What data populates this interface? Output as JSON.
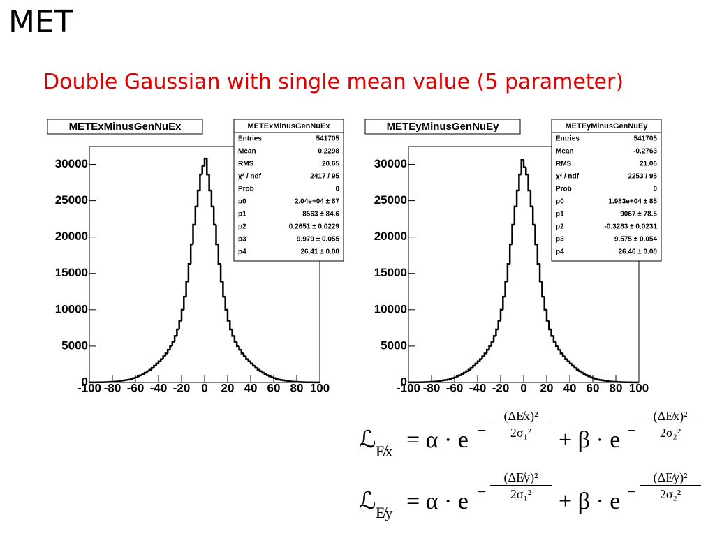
{
  "title": "MET",
  "subtitle": "Double Gaussian with single mean value (5 parameter)",
  "chart_data": [
    {
      "type": "histogram",
      "title": "METExMinusGenNuEx",
      "color": "#000000",
      "bins": [
        -100,
        -98,
        -96,
        -94,
        -92,
        -90,
        -88,
        -86,
        -84,
        -82,
        -80,
        -78,
        -76,
        -74,
        -72,
        -70,
        -68,
        -66,
        -64,
        -62,
        -60,
        -58,
        -56,
        -54,
        -52,
        -50,
        -48,
        -46,
        -44,
        -42,
        -40,
        -38,
        -36,
        -34,
        -32,
        -30,
        -28,
        -26,
        -24,
        -22,
        -20,
        -18,
        -16,
        -14,
        -12,
        -10,
        -8,
        -6,
        -4,
        -2,
        0,
        2,
        4,
        6,
        8,
        10,
        12,
        14,
        16,
        18,
        20,
        22,
        24,
        26,
        28,
        30,
        32,
        34,
        36,
        38,
        40,
        42,
        44,
        46,
        48,
        50,
        52,
        54,
        56,
        58,
        60,
        62,
        64,
        66,
        68,
        70,
        72,
        74,
        76,
        78,
        80,
        82,
        84,
        86,
        88,
        90,
        92,
        94,
        96,
        98,
        100
      ],
      "values": [
        8,
        10,
        15,
        20,
        25,
        30,
        40,
        50,
        60,
        80,
        100,
        120,
        150,
        200,
        250,
        300,
        350,
        400,
        500,
        600,
        700,
        850,
        1000,
        1150,
        1350,
        1550,
        1750,
        2000,
        2300,
        2600,
        2900,
        3200,
        3600,
        4000,
        4500,
        5000,
        5600,
        6400,
        7300,
        8500,
        10000,
        11800,
        13900,
        16300,
        19000,
        21700,
        24200,
        26400,
        28600,
        29800,
        30800,
        28600,
        26400,
        24200,
        21700,
        19000,
        16300,
        13900,
        11800,
        10000,
        8500,
        7300,
        6400,
        5600,
        5000,
        4500,
        4000,
        3600,
        3200,
        2900,
        2600,
        2300,
        2000,
        1750,
        1550,
        1350,
        1150,
        1000,
        850,
        700,
        600,
        500,
        400,
        350,
        300,
        250,
        200,
        150,
        120,
        100,
        80,
        60,
        50,
        40,
        30,
        25,
        20,
        15,
        10,
        8
      ],
      "xlim": [
        -100,
        100
      ],
      "xticks": [
        -100,
        -80,
        -60,
        -40,
        -20,
        0,
        20,
        40,
        60,
        80,
        100
      ],
      "ylim": [
        0,
        32450
      ],
      "yticks": [
        0,
        5000,
        10000,
        15000,
        20000,
        25000,
        30000
      ],
      "stats": {
        "name": "METExMinusGenNuEx",
        "rows": [
          [
            "Entries",
            "541705"
          ],
          [
            "Mean",
            "0.2298"
          ],
          [
            "RMS",
            "20.65"
          ],
          [
            "χ² / ndf",
            "2417 / 95"
          ],
          [
            "Prob",
            "0"
          ],
          [
            "p0",
            "2.04e+04 ± 87"
          ],
          [
            "p1",
            "8563 ± 84.6"
          ],
          [
            "p2",
            "0.2651 ± 0.0229"
          ],
          [
            "p3",
            "9.979 ± 0.055"
          ],
          [
            "p4",
            "26.41 ± 0.08"
          ]
        ]
      }
    },
    {
      "type": "histogram",
      "title": "METEyMinusGenNuEy",
      "color": "#000000",
      "bins": [
        -100,
        -98,
        -96,
        -94,
        -92,
        -90,
        -88,
        -86,
        -84,
        -82,
        -80,
        -78,
        -76,
        -74,
        -72,
        -70,
        -68,
        -66,
        -64,
        -62,
        -60,
        -58,
        -56,
        -54,
        -52,
        -50,
        -48,
        -46,
        -44,
        -42,
        -40,
        -38,
        -36,
        -34,
        -32,
        -30,
        -28,
        -26,
        -24,
        -22,
        -20,
        -18,
        -16,
        -14,
        -12,
        -10,
        -8,
        -6,
        -4,
        -2,
        0,
        2,
        4,
        6,
        8,
        10,
        12,
        14,
        16,
        18,
        20,
        22,
        24,
        26,
        28,
        30,
        32,
        34,
        36,
        38,
        40,
        42,
        44,
        46,
        48,
        50,
        52,
        54,
        56,
        58,
        60,
        62,
        64,
        66,
        68,
        70,
        72,
        74,
        76,
        78,
        80,
        82,
        84,
        86,
        88,
        90,
        92,
        94,
        96,
        98,
        100
      ],
      "values": [
        8,
        10,
        15,
        20,
        25,
        30,
        40,
        50,
        60,
        80,
        100,
        120,
        150,
        200,
        250,
        300,
        350,
        400,
        500,
        600,
        700,
        850,
        1000,
        1150,
        1350,
        1550,
        1750,
        2000,
        2300,
        2600,
        2900,
        3200,
        3600,
        4000,
        4500,
        5000,
        5600,
        6400,
        7300,
        8500,
        10000,
        11800,
        13900,
        16300,
        19000,
        21700,
        24200,
        26400,
        28600,
        30600,
        29600,
        28600,
        26400,
        24200,
        21700,
        19000,
        16300,
        13900,
        11800,
        10000,
        8500,
        7300,
        6400,
        5600,
        5000,
        4500,
        4000,
        3600,
        3200,
        2900,
        2600,
        2300,
        2000,
        1750,
        1550,
        1350,
        1150,
        1000,
        850,
        700,
        600,
        500,
        400,
        350,
        300,
        250,
        200,
        150,
        120,
        100,
        80,
        60,
        50,
        40,
        30,
        25,
        20,
        15,
        10,
        8
      ],
      "xlim": [
        -100,
        100
      ],
      "xticks": [
        -100,
        -80,
        -60,
        -40,
        -20,
        0,
        20,
        40,
        60,
        80,
        100
      ],
      "ylim": [
        0,
        32450
      ],
      "yticks": [
        0,
        5000,
        10000,
        15000,
        20000,
        25000,
        30000
      ],
      "stats": {
        "name": "METEyMinusGenNuEy",
        "rows": [
          [
            "Entries",
            "541705"
          ],
          [
            "Mean",
            "-0.2763"
          ],
          [
            "RMS",
            "21.06"
          ],
          [
            "χ² / ndf",
            "2253 / 95"
          ],
          [
            "Prob",
            "0"
          ],
          [
            "p0",
            "1.983e+04 ± 85"
          ],
          [
            "p1",
            "9067 ± 78.5"
          ],
          [
            "p2",
            "-0.3283 ± 0.0231"
          ],
          [
            "p3",
            "9.575 ± 0.054"
          ],
          [
            "p4",
            "26.46 ± 0.08"
          ]
        ]
      }
    }
  ],
  "formulas": [
    {
      "lhs": "ℒ",
      "sub": "E̸x",
      "eq": "= α · e",
      "minus": "−",
      "num1": "(ΔE̸x)²",
      "den1": "2σ₁²",
      "plus": "+ β · e",
      "num2": "(ΔE̸x)²",
      "den2": "2σ₂²"
    },
    {
      "lhs": "ℒ",
      "sub": "E̸y",
      "eq": "= α · e",
      "minus": "−",
      "num1": "(ΔE̸y)²",
      "den1": "2σ₁²",
      "plus": "+ β · e",
      "num2": "(ΔE̸y)²",
      "den2": "2σ₂²"
    }
  ]
}
